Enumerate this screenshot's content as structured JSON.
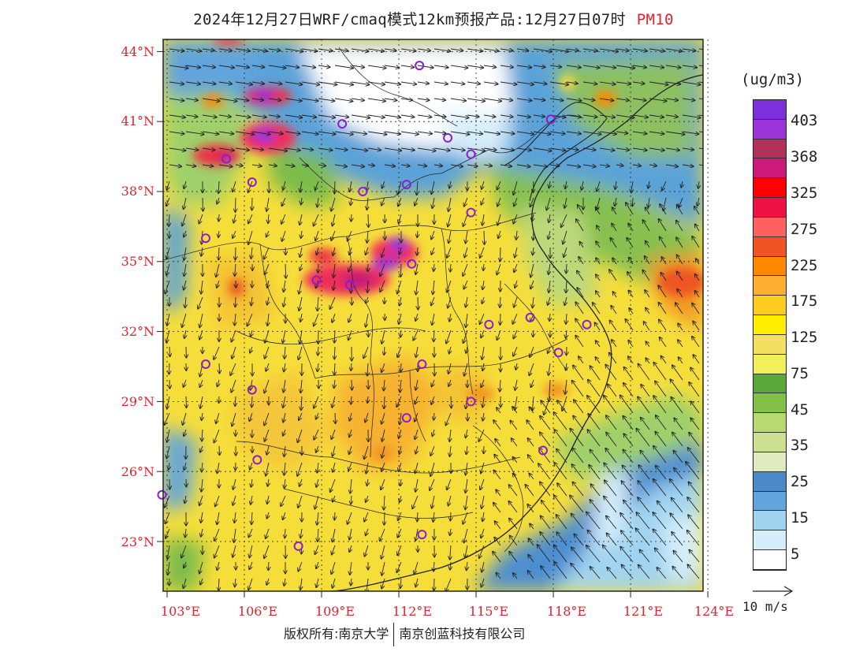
{
  "header": {
    "title": "2024年12月27日WRF/cmaq模式12km预报产品:12月27日07时",
    "variable": "PM10"
  },
  "map": {
    "lat_labels": [
      "44°N",
      "41°N",
      "38°N",
      "35°N",
      "32°N",
      "29°N",
      "26°N",
      "23°N"
    ],
    "lon_labels": [
      "103°E",
      "106°E",
      "109°E",
      "112°E",
      "115°E",
      "118°E",
      "121°E",
      "124°E"
    ]
  },
  "legend": {
    "unit": "(ug/m3)",
    "colors": [
      "#7d2fdc",
      "#9a34d8",
      "#b3305a",
      "#cc1a7a",
      "#ff0000",
      "#ee1144",
      "#ff6060",
      "#ee5522",
      "#ff8800",
      "#ffb030",
      "#ffcc20",
      "#ffee00",
      "#f4e060",
      "#f2f05a",
      "#5aa83a",
      "#82c048",
      "#b8d870",
      "#cce090",
      "#e0ecc0",
      "#4a8ac8",
      "#62a4dc",
      "#a0d4f0",
      "#d4eefa",
      "#ffffff"
    ],
    "ticks": [
      "403",
      "368",
      "325",
      "275",
      "225",
      "175",
      "125",
      "75",
      "45",
      "35",
      "25",
      "15",
      "5"
    ]
  },
  "wind_reference": {
    "label": "10 m/s"
  },
  "footer": {
    "copyright": "版权所有:南京大学",
    "company": "南京创蓝科技有限公司"
  },
  "stations": [
    {
      "lon": 112.8,
      "lat": 43.4
    },
    {
      "lon": 109.8,
      "lat": 40.9
    },
    {
      "lon": 113.9,
      "lat": 40.3
    },
    {
      "lon": 114.8,
      "lat": 39.6
    },
    {
      "lon": 105.3,
      "lat": 39.4
    },
    {
      "lon": 106.3,
      "lat": 38.4
    },
    {
      "lon": 110.6,
      "lat": 38.0
    },
    {
      "lon": 112.3,
      "lat": 38.3
    },
    {
      "lon": 114.8,
      "lat": 37.1
    },
    {
      "lon": 104.5,
      "lat": 36.0
    },
    {
      "lon": 110.1,
      "lat": 34.0
    },
    {
      "lon": 108.8,
      "lat": 34.2
    },
    {
      "lon": 112.5,
      "lat": 34.9
    },
    {
      "lon": 117.9,
      "lat": 41.1
    },
    {
      "lon": 115.5,
      "lat": 32.3
    },
    {
      "lon": 117.1,
      "lat": 32.6
    },
    {
      "lon": 118.2,
      "lat": 31.1
    },
    {
      "lon": 119.3,
      "lat": 32.3
    },
    {
      "lon": 104.5,
      "lat": 30.6
    },
    {
      "lon": 112.9,
      "lat": 30.6
    },
    {
      "lon": 106.3,
      "lat": 29.5
    },
    {
      "lon": 112.3,
      "lat": 28.3
    },
    {
      "lon": 114.8,
      "lat": 29.0
    },
    {
      "lon": 117.6,
      "lat": 26.9
    },
    {
      "lon": 106.5,
      "lat": 26.5
    },
    {
      "lon": 102.8,
      "lat": 25.0
    },
    {
      "lon": 108.1,
      "lat": 22.8
    },
    {
      "lon": 112.9,
      "lat": 23.3
    }
  ]
}
